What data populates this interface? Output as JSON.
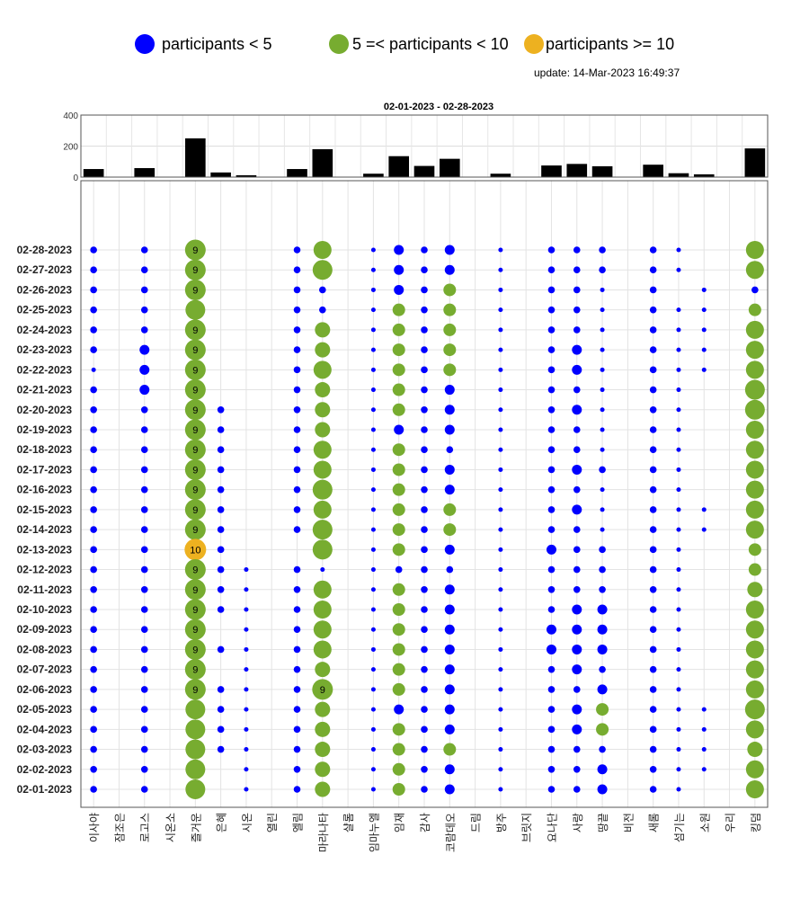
{
  "legend": {
    "items": [
      {
        "label": "participants < 5",
        "color": "#0000ff"
      },
      {
        "label": "5 =< participants < 10",
        "color": "#77ac30"
      },
      {
        "label": "participants >= 10",
        "color": "#edb120"
      }
    ],
    "update": "update: 14-Mar-2023 16:49:37"
  },
  "chart_data": {
    "type": "scatter",
    "title": "02-01-2023  - 02-28-2023",
    "colors": {
      "low": "#0000ff",
      "mid": "#77ac30",
      "high": "#edb120",
      "bar": "#000000"
    },
    "bar_ylim": [
      0,
      400
    ],
    "bar_yticks": [
      "0",
      "200",
      "400"
    ],
    "categories": [
      "이사야",
      "잠조은",
      "로고스",
      "시온소",
      "즐거운",
      "은혜",
      "시온",
      "열린",
      "엘림",
      "마라나타",
      "샬롬",
      "임마누엘",
      "임재",
      "감사",
      "코람데오",
      "드림",
      "방주",
      "브릿지",
      "요나단",
      "사랑",
      "땅끝",
      "비전",
      "새롬",
      "섬기는",
      "소원",
      "우리",
      "킹덤"
    ],
    "dates": [
      "02-28-2023",
      "02-27-2023",
      "02-26-2023",
      "02-25-2023",
      "02-24-2023",
      "02-23-2023",
      "02-22-2023",
      "02-21-2023",
      "02-20-2023",
      "02-19-2023",
      "02-18-2023",
      "02-17-2023",
      "02-16-2023",
      "02-15-2023",
      "02-14-2023",
      "02-13-2023",
      "02-12-2023",
      "02-11-2023",
      "02-10-2023",
      "02-09-2023",
      "02-08-2023",
      "02-07-2023",
      "02-06-2023",
      "02-05-2023",
      "02-04-2023",
      "02-03-2023",
      "02-02-2023",
      "02-01-2023"
    ],
    "monthly_totals": [
      52,
      0,
      58,
      0,
      250,
      30,
      12,
      0,
      52,
      180,
      0,
      22,
      135,
      72,
      118,
      0,
      22,
      0,
      75,
      85,
      70,
      0,
      80,
      25,
      18,
      0,
      185
    ],
    "series": [
      {
        "category": "이사야",
        "values": [
          2,
          2,
          2,
          2,
          2,
          2,
          1,
          2,
          2,
          2,
          2,
          2,
          2,
          2,
          2,
          2,
          2,
          2,
          2,
          2,
          2,
          2,
          2,
          2,
          2,
          2,
          2,
          2
        ]
      },
      {
        "category": "잠조은",
        "values": [
          0,
          0,
          0,
          0,
          0,
          0,
          0,
          0,
          0,
          0,
          0,
          0,
          0,
          0,
          0,
          0,
          0,
          0,
          0,
          0,
          0,
          0,
          0,
          0,
          0,
          0,
          0,
          0
        ]
      },
      {
        "category": "로고스",
        "values": [
          2,
          2,
          2,
          2,
          2,
          3,
          3,
          3,
          2,
          2,
          2,
          2,
          2,
          2,
          2,
          2,
          2,
          2,
          2,
          2,
          2,
          2,
          2,
          2,
          2,
          2,
          2,
          2
        ]
      },
      {
        "category": "시온소",
        "values": [
          0,
          0,
          0,
          0,
          0,
          0,
          0,
          0,
          0,
          0,
          0,
          0,
          0,
          0,
          0,
          0,
          0,
          0,
          0,
          0,
          0,
          0,
          0,
          0,
          0,
          0,
          0,
          0
        ]
      },
      {
        "category": "즐거운",
        "values": [
          9,
          9,
          9,
          8,
          9,
          9,
          9,
          9,
          9,
          9,
          9,
          9,
          9,
          9,
          9,
          10,
          9,
          9,
          9,
          9,
          9,
          9,
          9,
          8,
          8,
          8,
          8,
          8
        ]
      },
      {
        "category": "은혜",
        "values": [
          0,
          0,
          0,
          0,
          0,
          0,
          0,
          0,
          2,
          2,
          2,
          2,
          2,
          2,
          2,
          2,
          2,
          2,
          2,
          0,
          2,
          0,
          2,
          2,
          2,
          2,
          0,
          0
        ]
      },
      {
        "category": "시온",
        "values": [
          0,
          0,
          0,
          0,
          0,
          0,
          0,
          0,
          0,
          0,
          0,
          0,
          0,
          0,
          0,
          0,
          1,
          1,
          1,
          1,
          1,
          1,
          1,
          1,
          1,
          1,
          1,
          1
        ]
      },
      {
        "category": "열린",
        "values": [
          0,
          0,
          0,
          0,
          0,
          0,
          0,
          0,
          0,
          0,
          0,
          0,
          0,
          0,
          0,
          0,
          0,
          0,
          0,
          0,
          0,
          0,
          0,
          0,
          0,
          0,
          0,
          0
        ]
      },
      {
        "category": "엘림",
        "values": [
          2,
          2,
          2,
          2,
          2,
          2,
          2,
          2,
          2,
          2,
          2,
          2,
          2,
          2,
          2,
          0,
          2,
          2,
          2,
          2,
          2,
          2,
          2,
          2,
          2,
          2,
          2,
          2
        ]
      },
      {
        "category": "마라나타",
        "values": [
          7,
          8,
          2,
          2,
          6,
          6,
          7,
          6,
          6,
          6,
          7,
          7,
          8,
          7,
          8,
          8,
          1,
          7,
          7,
          7,
          7,
          6,
          9,
          6,
          6,
          6,
          6,
          6
        ]
      },
      {
        "category": "샬롬",
        "values": [
          0,
          0,
          0,
          0,
          0,
          0,
          0,
          0,
          0,
          0,
          0,
          0,
          0,
          0,
          0,
          0,
          0,
          0,
          0,
          0,
          0,
          0,
          0,
          0,
          0,
          0,
          0,
          0
        ]
      },
      {
        "category": "임마누엘",
        "values": [
          1,
          1,
          1,
          1,
          1,
          1,
          1,
          1,
          1,
          1,
          1,
          1,
          1,
          1,
          1,
          1,
          1,
          1,
          1,
          1,
          1,
          1,
          1,
          1,
          1,
          1,
          1,
          1
        ]
      },
      {
        "category": "임재",
        "values": [
          3,
          3,
          3,
          5,
          5,
          5,
          5,
          5,
          5,
          3,
          5,
          5,
          5,
          5,
          5,
          5,
          2,
          5,
          5,
          5,
          5,
          5,
          5,
          3,
          5,
          5,
          5,
          5
        ]
      },
      {
        "category": "감사",
        "values": [
          2,
          2,
          2,
          2,
          2,
          2,
          2,
          2,
          2,
          2,
          2,
          2,
          2,
          2,
          2,
          2,
          2,
          2,
          2,
          2,
          2,
          2,
          2,
          2,
          2,
          2,
          2,
          2
        ]
      },
      {
        "category": "코람데오",
        "values": [
          3,
          3,
          5,
          5,
          5,
          5,
          5,
          3,
          3,
          3,
          2,
          3,
          3,
          5,
          5,
          3,
          2,
          3,
          3,
          3,
          3,
          3,
          3,
          3,
          3,
          5,
          3,
          3
        ]
      },
      {
        "category": "드림",
        "values": [
          0,
          0,
          0,
          0,
          0,
          0,
          0,
          0,
          0,
          0,
          0,
          0,
          0,
          0,
          0,
          0,
          0,
          0,
          0,
          0,
          0,
          0,
          0,
          0,
          0,
          0,
          0,
          0
        ]
      },
      {
        "category": "방주",
        "values": [
          1,
          1,
          1,
          1,
          1,
          1,
          1,
          1,
          1,
          1,
          1,
          1,
          1,
          1,
          1,
          1,
          1,
          1,
          1,
          1,
          1,
          1,
          1,
          1,
          1,
          1,
          1,
          1
        ]
      },
      {
        "category": "브릿지",
        "values": [
          0,
          0,
          0,
          0,
          0,
          0,
          0,
          0,
          0,
          0,
          0,
          0,
          0,
          0,
          0,
          0,
          0,
          0,
          0,
          0,
          0,
          0,
          0,
          0,
          0,
          0,
          0,
          0
        ]
      },
      {
        "category": "요나단",
        "values": [
          2,
          2,
          2,
          2,
          2,
          2,
          2,
          2,
          2,
          2,
          2,
          2,
          2,
          2,
          2,
          3,
          2,
          2,
          2,
          3,
          3,
          2,
          2,
          2,
          2,
          2,
          2,
          2
        ]
      },
      {
        "category": "사랑",
        "values": [
          2,
          2,
          2,
          2,
          2,
          3,
          3,
          2,
          3,
          2,
          2,
          3,
          2,
          3,
          2,
          2,
          2,
          2,
          3,
          3,
          3,
          3,
          2,
          3,
          3,
          2,
          2,
          2
        ]
      },
      {
        "category": "땅끝",
        "values": [
          2,
          2,
          1,
          1,
          1,
          1,
          1,
          1,
          1,
          1,
          1,
          2,
          1,
          1,
          1,
          2,
          2,
          2,
          3,
          3,
          3,
          2,
          3,
          5,
          5,
          2,
          3,
          3
        ]
      },
      {
        "category": "비전",
        "values": [
          0,
          0,
          0,
          0,
          0,
          0,
          0,
          0,
          0,
          0,
          0,
          0,
          0,
          0,
          0,
          0,
          0,
          0,
          0,
          0,
          0,
          0,
          0,
          0,
          0,
          0,
          0,
          0
        ]
      },
      {
        "category": "새롬",
        "values": [
          2,
          2,
          2,
          2,
          2,
          2,
          2,
          2,
          2,
          2,
          2,
          2,
          2,
          2,
          2,
          2,
          2,
          2,
          2,
          2,
          2,
          2,
          2,
          2,
          2,
          2,
          2,
          2
        ]
      },
      {
        "category": "섬기는",
        "values": [
          1,
          1,
          0,
          1,
          1,
          1,
          1,
          1,
          1,
          1,
          1,
          1,
          1,
          1,
          1,
          1,
          1,
          1,
          1,
          1,
          1,
          1,
          1,
          1,
          1,
          1,
          1,
          1
        ]
      },
      {
        "category": "소원",
        "values": [
          0,
          0,
          1,
          1,
          1,
          1,
          1,
          0,
          0,
          0,
          0,
          0,
          0,
          1,
          1,
          0,
          0,
          0,
          0,
          0,
          0,
          0,
          0,
          1,
          1,
          1,
          1,
          0
        ]
      },
      {
        "category": "우리",
        "values": [
          0,
          0,
          0,
          0,
          0,
          0,
          0,
          0,
          0,
          0,
          0,
          0,
          0,
          0,
          0,
          0,
          0,
          0,
          0,
          0,
          0,
          0,
          0,
          0,
          0,
          0,
          0,
          0
        ]
      },
      {
        "category": "킹덤",
        "values": [
          7,
          7,
          2,
          5,
          7,
          7,
          7,
          8,
          8,
          7,
          7,
          7,
          7,
          7,
          7,
          5,
          5,
          6,
          7,
          7,
          7,
          7,
          7,
          8,
          7,
          6,
          7,
          7
        ]
      }
    ],
    "labeled_values_shown": 9,
    "grid": true
  }
}
